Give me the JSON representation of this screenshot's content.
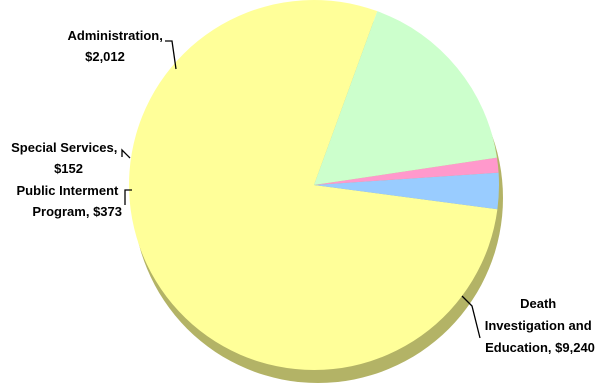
{
  "chart_data": {
    "type": "pie",
    "title": "",
    "slices": [
      {
        "name": "Death Investigation and Education",
        "value": 9240,
        "label_lines": [
          "Death",
          "Investigation and",
          "Education, $9,240"
        ],
        "color": "#FFFF99"
      },
      {
        "name": "Public Interment Program",
        "value": 373,
        "label_lines": [
          "Public Interment",
          "Program, $373"
        ],
        "color": "#99CCFF"
      },
      {
        "name": "Special Services",
        "value": 152,
        "label_lines": [
          "Special Services,",
          "$152"
        ],
        "color": "#FF99CC"
      },
      {
        "name": "Administration",
        "value": 2012,
        "label_lines": [
          "Administration,",
          "$2,012"
        ],
        "color": "#CCFFCC"
      }
    ],
    "legend": "none",
    "label_style": "callout with leader lines",
    "start_angle_deg": 20,
    "direction": "clockwise",
    "three_d": true,
    "shadow_color": "#B3B366"
  }
}
